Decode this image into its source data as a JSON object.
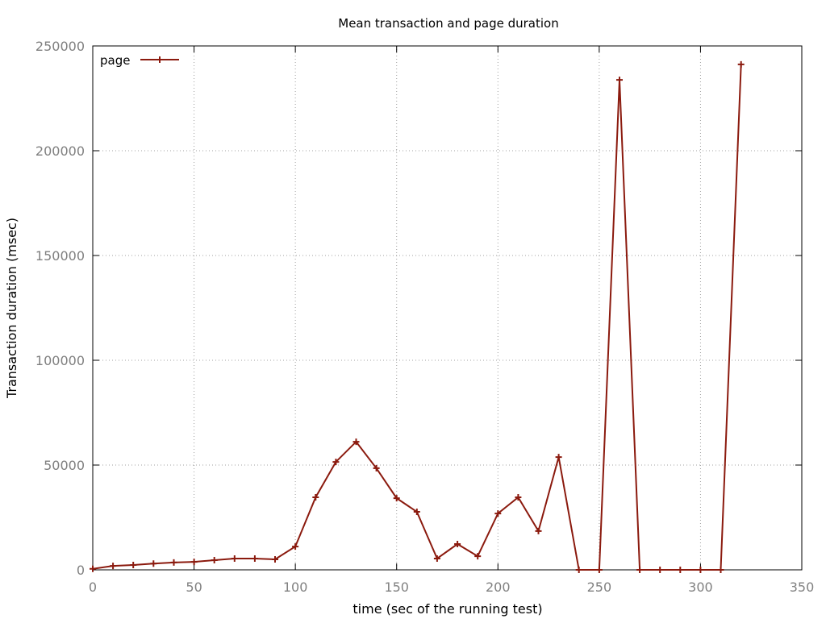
{
  "chart_data": {
    "type": "line",
    "title": "Mean transaction and page duration",
    "xlabel": "time (sec of the running test)",
    "ylabel": "Transaction duration (msec)",
    "xlim": [
      0,
      350
    ],
    "ylim": [
      0,
      250000
    ],
    "x_ticks": [
      0,
      50,
      100,
      150,
      200,
      250,
      300,
      350
    ],
    "y_ticks": [
      0,
      50000,
      100000,
      150000,
      200000,
      250000
    ],
    "grid": true,
    "legend_position": "top-left",
    "series": [
      {
        "name": "page",
        "color": "#8b1a0e",
        "marker": "plus",
        "x": [
          0,
          10,
          20,
          30,
          40,
          50,
          60,
          70,
          80,
          90,
          100,
          110,
          120,
          130,
          140,
          150,
          160,
          170,
          180,
          190,
          200,
          210,
          220,
          230,
          240,
          250,
          260,
          270,
          280,
          290,
          300,
          310,
          320
        ],
        "y": [
          500,
          1900,
          2300,
          3000,
          3500,
          3800,
          4600,
          5400,
          5400,
          5000,
          11100,
          34600,
          51500,
          61100,
          48500,
          34200,
          27700,
          5400,
          12300,
          6500,
          26900,
          34600,
          18500,
          53800,
          0,
          0,
          233800,
          0,
          0,
          0,
          0,
          0,
          241200
        ]
      }
    ]
  }
}
